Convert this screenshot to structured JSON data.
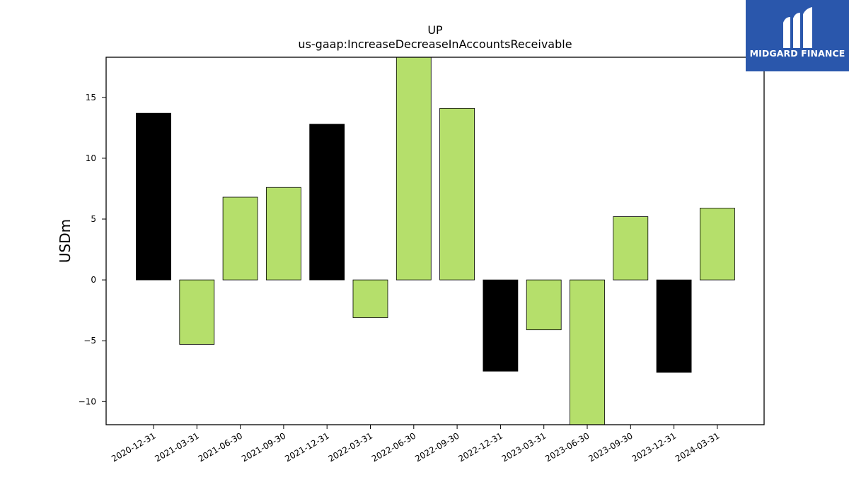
{
  "chart_data": {
    "type": "bar",
    "title": "UP",
    "subtitle": "us-gaap:IncreaseDecreaseInAccountsReceivable",
    "xlabel": "",
    "ylabel": "USDm",
    "ylim": [
      -11.9,
      18.3
    ],
    "yticks": [
      -10,
      -5,
      0,
      5,
      10,
      15
    ],
    "ytick_labels": [
      "−10",
      "−5",
      "0",
      "5",
      "10",
      "15"
    ],
    "grid": false,
    "categories": [
      "2020-12-31",
      "2021-03-31",
      "2021-06-30",
      "2021-09-30",
      "2021-12-31",
      "2022-03-31",
      "2022-06-30",
      "2022-09-30",
      "2022-12-31",
      "2023-03-31",
      "2023-06-30",
      "2023-09-30",
      "2023-12-31",
      "2024-03-31"
    ],
    "values": [
      13.7,
      -5.3,
      6.8,
      7.6,
      12.8,
      -3.1,
      19.5,
      14.1,
      -7.5,
      -4.1,
      -12.5,
      5.2,
      -7.6,
      5.9
    ],
    "bar_colors": [
      "#000000",
      "#b5df6b",
      "#b5df6b",
      "#b5df6b",
      "#000000",
      "#b5df6b",
      "#b5df6b",
      "#b5df6b",
      "#000000",
      "#b5df6b",
      "#b5df6b",
      "#b5df6b",
      "#000000",
      "#b5df6b"
    ]
  },
  "logo": {
    "text": "MIDGARD FINANCE",
    "background": "#2a57ac",
    "icon": "midgard-m-logo-icon"
  }
}
